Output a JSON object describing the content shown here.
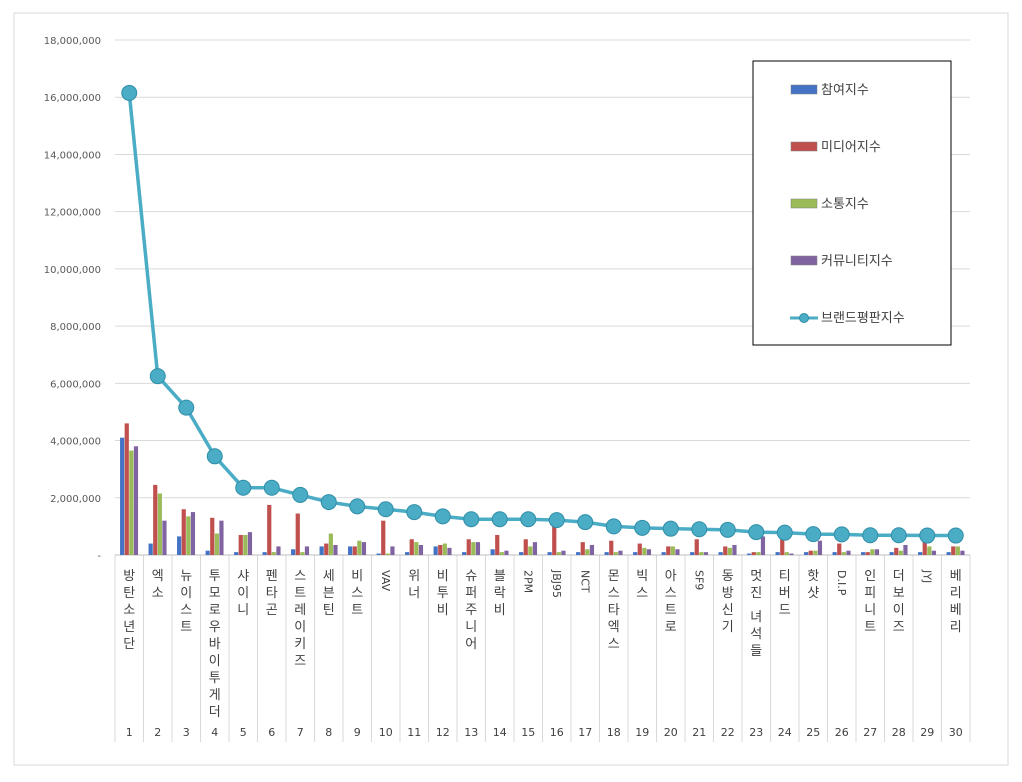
{
  "chart_data": {
    "type": "bar",
    "categories": [
      "방탄소년단",
      "엑소",
      "뉴이스트",
      "투모로우바이투게더",
      "샤이니",
      "펜타곤",
      "스트레이키즈",
      "세븐틴",
      "비스트",
      "VAV",
      "위너",
      "비투비",
      "슈퍼주니어",
      "블락비",
      "2PM",
      "JBJ95",
      "NCT",
      "몬스타엑스",
      "빅스",
      "아스트로",
      "SF9",
      "동방신기",
      "멋진 녀석들",
      "티버드",
      "핫샷",
      "D.I.P",
      "인피니트",
      "더보이즈",
      "JYJ",
      "베리베리"
    ],
    "ranks": [
      "1",
      "2",
      "3",
      "4",
      "5",
      "6",
      "7",
      "8",
      "9",
      "10",
      "11",
      "12",
      "13",
      "14",
      "15",
      "16",
      "17",
      "18",
      "19",
      "20",
      "21",
      "22",
      "23",
      "24",
      "25",
      "26",
      "27",
      "28",
      "29",
      "30"
    ],
    "series": [
      {
        "name": "참여지수",
        "color": "#4472C4",
        "values": [
          4100000,
          400000,
          650000,
          150000,
          100000,
          100000,
          200000,
          300000,
          300000,
          50000,
          100000,
          300000,
          100000,
          200000,
          100000,
          100000,
          100000,
          100000,
          100000,
          100000,
          100000,
          100000,
          50000,
          100000,
          100000,
          100000,
          100000,
          100000,
          100000,
          100000
        ]
      },
      {
        "name": "미디어지수",
        "color": "#C0504D",
        "values": [
          4600000,
          2450000,
          1600000,
          1300000,
          700000,
          1750000,
          1450000,
          400000,
          300000,
          1200000,
          550000,
          350000,
          550000,
          700000,
          550000,
          1050000,
          450000,
          500000,
          400000,
          300000,
          550000,
          300000,
          100000,
          600000,
          150000,
          400000,
          100000,
          250000,
          600000,
          300000
        ]
      },
      {
        "name": "소통지수",
        "color": "#9BBB59",
        "values": [
          3650000,
          2150000,
          1350000,
          750000,
          700000,
          100000,
          100000,
          750000,
          500000,
          50000,
          450000,
          400000,
          450000,
          100000,
          300000,
          100000,
          200000,
          100000,
          250000,
          300000,
          100000,
          250000,
          100000,
          100000,
          150000,
          100000,
          200000,
          150000,
          300000,
          300000
        ]
      },
      {
        "name": "커뮤니티지수",
        "color": "#8064A2",
        "values": [
          3800000,
          1200000,
          1500000,
          1200000,
          800000,
          300000,
          300000,
          350000,
          450000,
          300000,
          350000,
          250000,
          450000,
          150000,
          450000,
          150000,
          350000,
          150000,
          200000,
          200000,
          100000,
          350000,
          650000,
          50000,
          500000,
          150000,
          200000,
          350000,
          150000,
          150000
        ]
      }
    ],
    "line": {
      "name": "브랜드평판지수",
      "color": "#4BACC6",
      "values": [
        16150000,
        6250000,
        5150000,
        3450000,
        2350000,
        2350000,
        2100000,
        1850000,
        1700000,
        1600000,
        1500000,
        1350000,
        1250000,
        1250000,
        1250000,
        1220000,
        1150000,
        1000000,
        950000,
        920000,
        900000,
        880000,
        800000,
        780000,
        730000,
        720000,
        690000,
        690000,
        680000,
        680000
      ]
    },
    "y_ticks": [
      "-",
      "2,000,000",
      "4,000,000",
      "6,000,000",
      "8,000,000",
      "10,000,000",
      "12,000,000",
      "14,000,000",
      "16,000,000",
      "18,000,000"
    ],
    "ylim": [
      0,
      18000000
    ],
    "grid": true,
    "legend_placement": "top-right"
  }
}
